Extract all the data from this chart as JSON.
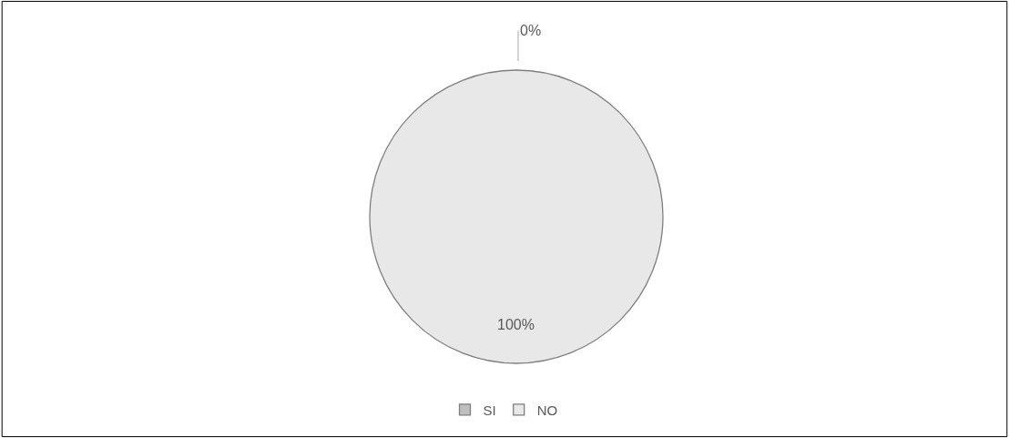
{
  "chart_data": {
    "type": "pie",
    "categories": [
      "SI",
      "NO"
    ],
    "values": [
      0,
      100
    ],
    "colors": [
      "#bfbfbf",
      "#e8e8e8"
    ],
    "value_labels": [
      "0%",
      "100%"
    ],
    "legend": "bottom"
  }
}
